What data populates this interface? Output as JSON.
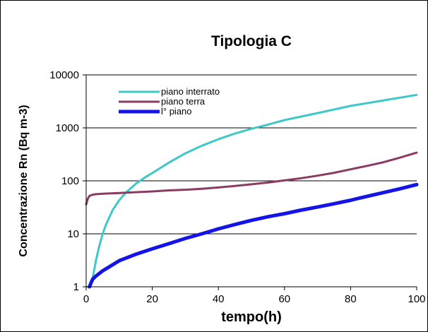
{
  "chart_data": {
    "type": "line",
    "title": "Tipologia C",
    "xlabel": "tempo(h)",
    "ylabel": "Concentrazione Rn (Bq m-3)",
    "x_scale": "linear",
    "y_scale": "log",
    "xlim": [
      0,
      100
    ],
    "ylim": [
      1,
      10000
    ],
    "x_ticks": [
      "0",
      "20",
      "40",
      "60",
      "80",
      "100"
    ],
    "y_ticks": [
      "1",
      "10",
      "100",
      "1000",
      "10000"
    ],
    "grid": "horizontal major gridlines",
    "legend_position": "top-left",
    "series": [
      {
        "name": "piano interrato",
        "color": "#40C8C8",
        "x": [
          0.5,
          1,
          2,
          3,
          4,
          5,
          6,
          8,
          10,
          12,
          15,
          18,
          20,
          25,
          30,
          35,
          40,
          45,
          50,
          55,
          60,
          70,
          80,
          90,
          100
        ],
        "y": [
          1,
          1,
          1.5,
          3.2,
          6,
          10,
          15,
          28,
          43,
          60,
          88,
          118,
          140,
          220,
          330,
          460,
          610,
          780,
          960,
          1150,
          1400,
          1900,
          2600,
          3300,
          4200
        ]
      },
      {
        "name": "piano terra",
        "color": "#8B3A62",
        "x": [
          0,
          0.5,
          1,
          2,
          3,
          5,
          10,
          15,
          20,
          25,
          30,
          35,
          40,
          45,
          50,
          55,
          60,
          65,
          70,
          75,
          80,
          85,
          90,
          95,
          100
        ],
        "y": [
          36,
          46,
          52,
          55,
          56,
          57,
          59,
          61,
          63,
          66,
          68,
          71,
          75,
          80,
          86,
          93,
          102,
          112,
          125,
          142,
          165,
          192,
          225,
          275,
          340
        ]
      },
      {
        "name": "l° piano",
        "color": "#1414E8",
        "x": [
          1,
          1.5,
          2,
          3,
          5,
          8,
          10,
          15,
          20,
          25,
          30,
          35,
          40,
          45,
          50,
          55,
          60,
          65,
          70,
          75,
          80,
          85,
          90,
          95,
          100
        ],
        "y": [
          1,
          1.2,
          1.4,
          1.6,
          2,
          2.6,
          3.1,
          4.1,
          5.2,
          6.5,
          8.2,
          10,
          12.4,
          15,
          18,
          21,
          24,
          28,
          32,
          37,
          43,
          51,
          60,
          71,
          85
        ]
      }
    ]
  }
}
